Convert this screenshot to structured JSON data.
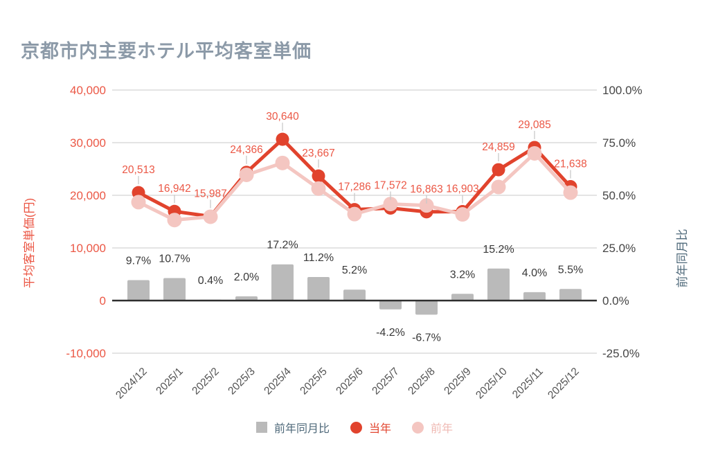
{
  "title": "京都市内主要ホテル平均客室単価",
  "colors": {
    "title": "#8c9aa8",
    "current_year": "#e1432d",
    "current_year_label": "#eb5745",
    "previous_year": "#f4c6c1",
    "previous_year_label": "#efb9b3",
    "bars": "#bababa",
    "bar_label": "#383838",
    "left_axis": "#eb5745",
    "right_axis_ticks": "#454545",
    "right_axis_title": "#4e6879",
    "x_labels": "#525252",
    "gridline": "#dbdbdb",
    "zero_line": "#2e2e2e",
    "leader_line": "#c9c9c9"
  },
  "chart_data": {
    "type": "combo",
    "title": "京都市内主要ホテル平均客室単価",
    "categories": [
      "2024/12",
      "2025/1",
      "2025/2",
      "2025/3",
      "2025/4",
      "2025/5",
      "2025/6",
      "2025/7",
      "2025/8",
      "2025/9",
      "2025/10",
      "2025/11",
      "2025/12"
    ],
    "series": [
      {
        "name": "前年同月比",
        "type": "bar",
        "axis": "right",
        "values": [
          9.7,
          10.7,
          0.4,
          2.0,
          17.2,
          11.2,
          5.2,
          -4.2,
          -6.7,
          3.2,
          15.2,
          4.0,
          5.5
        ],
        "labels": [
          "9.7%",
          "10.7%",
          "0.4%",
          "2.0%",
          "17.2%",
          "11.2%",
          "5.2%",
          "-4.2%",
          "-6.7%",
          "3.2%",
          "15.2%",
          "4.0%",
          "5.5%"
        ]
      },
      {
        "name": "当年",
        "type": "line",
        "axis": "left",
        "values": [
          20513,
          16942,
          15987,
          24366,
          30640,
          23667,
          17286,
          17572,
          16863,
          16903,
          24859,
          29085,
          21638
        ],
        "labels": [
          "20,513",
          "16,942",
          "15,987",
          "24,366",
          "30,640",
          "23,667",
          "17,286",
          "17,572",
          "16,863",
          "16,903",
          "24,859",
          "29,085",
          "21,638"
        ]
      },
      {
        "name": "前年",
        "type": "line",
        "axis": "left",
        "estimated": true,
        "values": [
          18699,
          15304,
          15923,
          23888,
          26143,
          21283,
          16432,
          18342,
          18074,
          16379,
          21579,
          27966,
          20510
        ],
        "labels": []
      }
    ],
    "left_axis": {
      "title": "平均客室単価(円)",
      "ticks": [
        "40,000",
        "30,000",
        "20,000",
        "10,000",
        "0",
        "-10,000"
      ],
      "tick_values": [
        40000,
        30000,
        20000,
        10000,
        0,
        -10000
      ],
      "range": [
        -10000,
        40000
      ]
    },
    "right_axis": {
      "title": "前年同月比",
      "ticks": [
        "100.0%",
        "75.0%",
        "50.0%",
        "25.0%",
        "0.0%",
        "-25.0%"
      ],
      "tick_values": [
        100,
        75,
        50,
        25,
        0,
        -25
      ],
      "range": [
        -25,
        100
      ]
    },
    "grid": true,
    "legend_position": "bottom",
    "legend": [
      {
        "label": "前年同月比",
        "swatch": "square",
        "color": "#bababa",
        "label_color": "#4e6879"
      },
      {
        "label": "当年",
        "swatch": "circle",
        "color": "#e1432d",
        "label_color": "#e1432d"
      },
      {
        "label": "前年",
        "swatch": "circle",
        "color": "#f4c6c1",
        "label_color": "#efb9b3"
      }
    ]
  }
}
